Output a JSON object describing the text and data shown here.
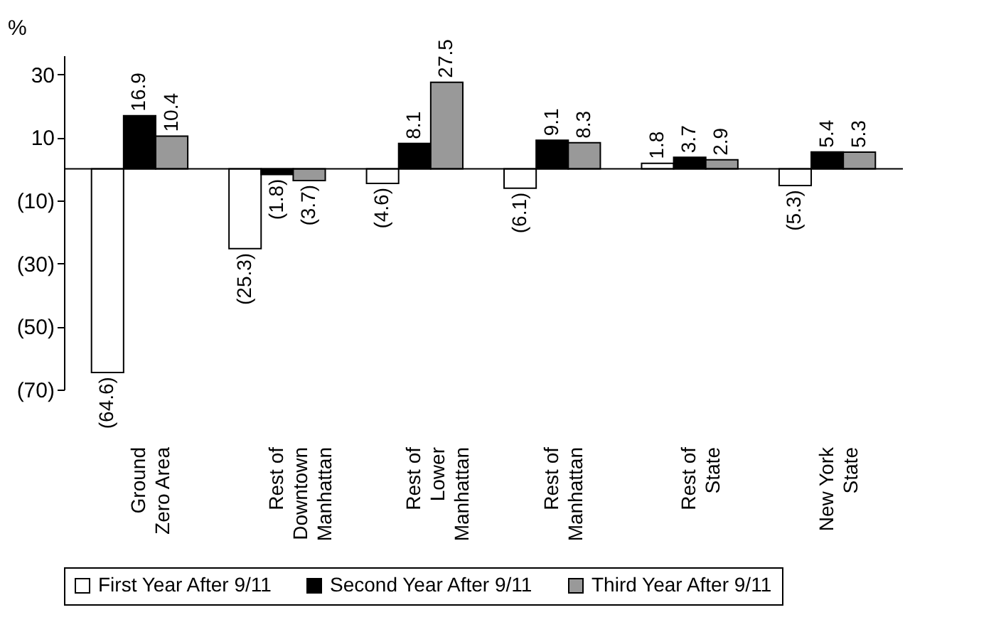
{
  "chart_data": {
    "type": "bar",
    "ylabel": "%",
    "categories": [
      "Ground\nZero Area",
      "Rest of\nDowntown\nManhattan",
      "Rest of\nLower\nManhattan",
      "Rest of\nManhattan",
      "Rest of\nState",
      "New York\nState"
    ],
    "series": [
      {
        "name": "First Year After 9/11",
        "color": "#ffffff",
        "values": [
          -64.6,
          -25.3,
          -4.6,
          -6.1,
          1.8,
          -5.3
        ],
        "value_labels": [
          "(64.6)",
          "(25.3)",
          "(4.6)",
          "(6.1)",
          "1.8",
          "(5.3)"
        ]
      },
      {
        "name": "Second Year After 9/11",
        "color": "#000000",
        "values": [
          16.9,
          -1.8,
          8.1,
          9.1,
          3.7,
          5.4
        ],
        "value_labels": [
          "16.9",
          "(1.8)",
          "8.1",
          "9.1",
          "3.7",
          "5.4"
        ]
      },
      {
        "name": "Third Year After 9/11",
        "color": "#999999",
        "values": [
          10.4,
          -3.7,
          27.5,
          8.3,
          2.9,
          5.3
        ],
        "value_labels": [
          "10.4",
          "(3.7)",
          "27.5",
          "8.3",
          "2.9",
          "5.3"
        ]
      }
    ],
    "ylim": [
      -70,
      36
    ],
    "yticks": [
      30,
      10,
      {
        "value": -10,
        "label": "(10)"
      },
      {
        "value": -30,
        "label": "(30)"
      },
      {
        "value": -50,
        "label": "(50)"
      },
      {
        "value": -70,
        "label": "(70)"
      }
    ],
    "ref_lines": [
      {
        "axis": "y",
        "value": 0,
        "color": "#000000"
      }
    ],
    "legend": "bottom",
    "grid": false
  }
}
